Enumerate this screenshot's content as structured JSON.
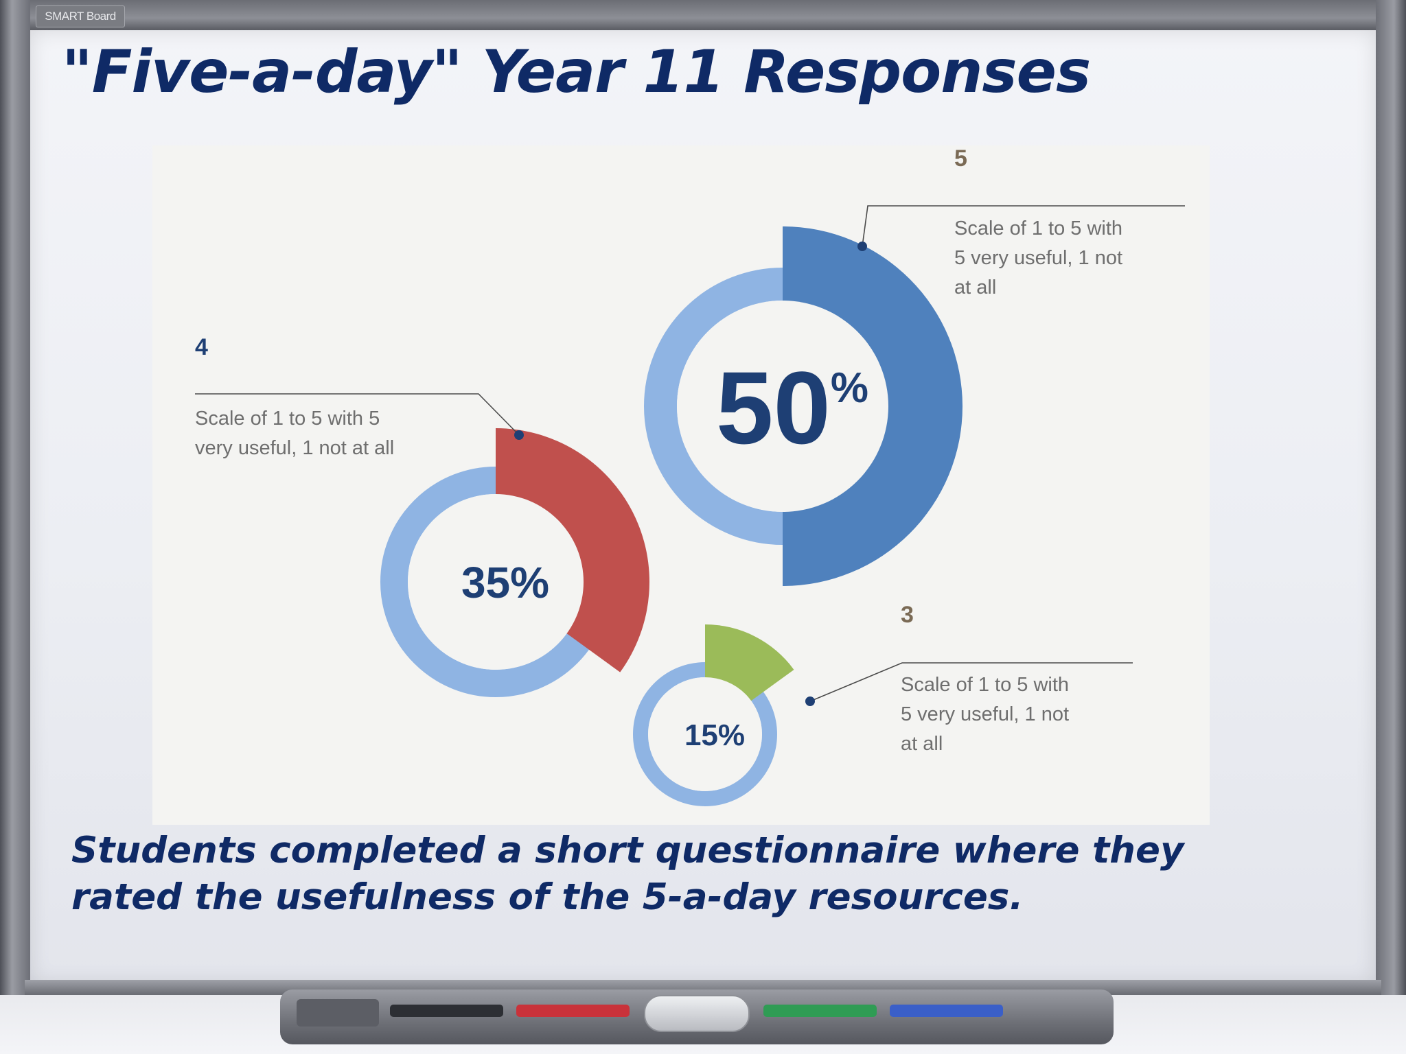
{
  "board": {
    "brand": "SMART Board",
    "title": "\"Five-a-day\" Year 11 Responses",
    "caption": "Students completed a short questionnaire where they rated the usefulness of the 5-a-day resources."
  },
  "colors": {
    "ring": "#8fb4e3",
    "score5": "#4f81bd",
    "score4": "#c0504d",
    "score3": "#9bbb59",
    "text_dark": "#1e3f74",
    "label_note": "#6e6e6e"
  },
  "chart_data": {
    "type": "pie",
    "title": "",
    "value_unit": "%",
    "series": [
      {
        "label": "5",
        "value": 50,
        "value_label": "50%",
        "note": "Scale of 1 to 5 with 5 very useful, 1 not at all",
        "color": "#4f81bd"
      },
      {
        "label": "4",
        "value": 35,
        "value_label": "35%",
        "note": "Scale of 1 to 5 with 5 very useful, 1 not at all",
        "color": "#c0504d"
      },
      {
        "label": "3",
        "value": 15,
        "value_label": "15%",
        "note": "Scale of 1 to 5 with 5 very useful, 1 not at all",
        "color": "#9bbb59"
      }
    ]
  },
  "tray": {
    "pens": [
      "black-pen",
      "red-pen",
      "green-pen",
      "blue-pen"
    ]
  }
}
